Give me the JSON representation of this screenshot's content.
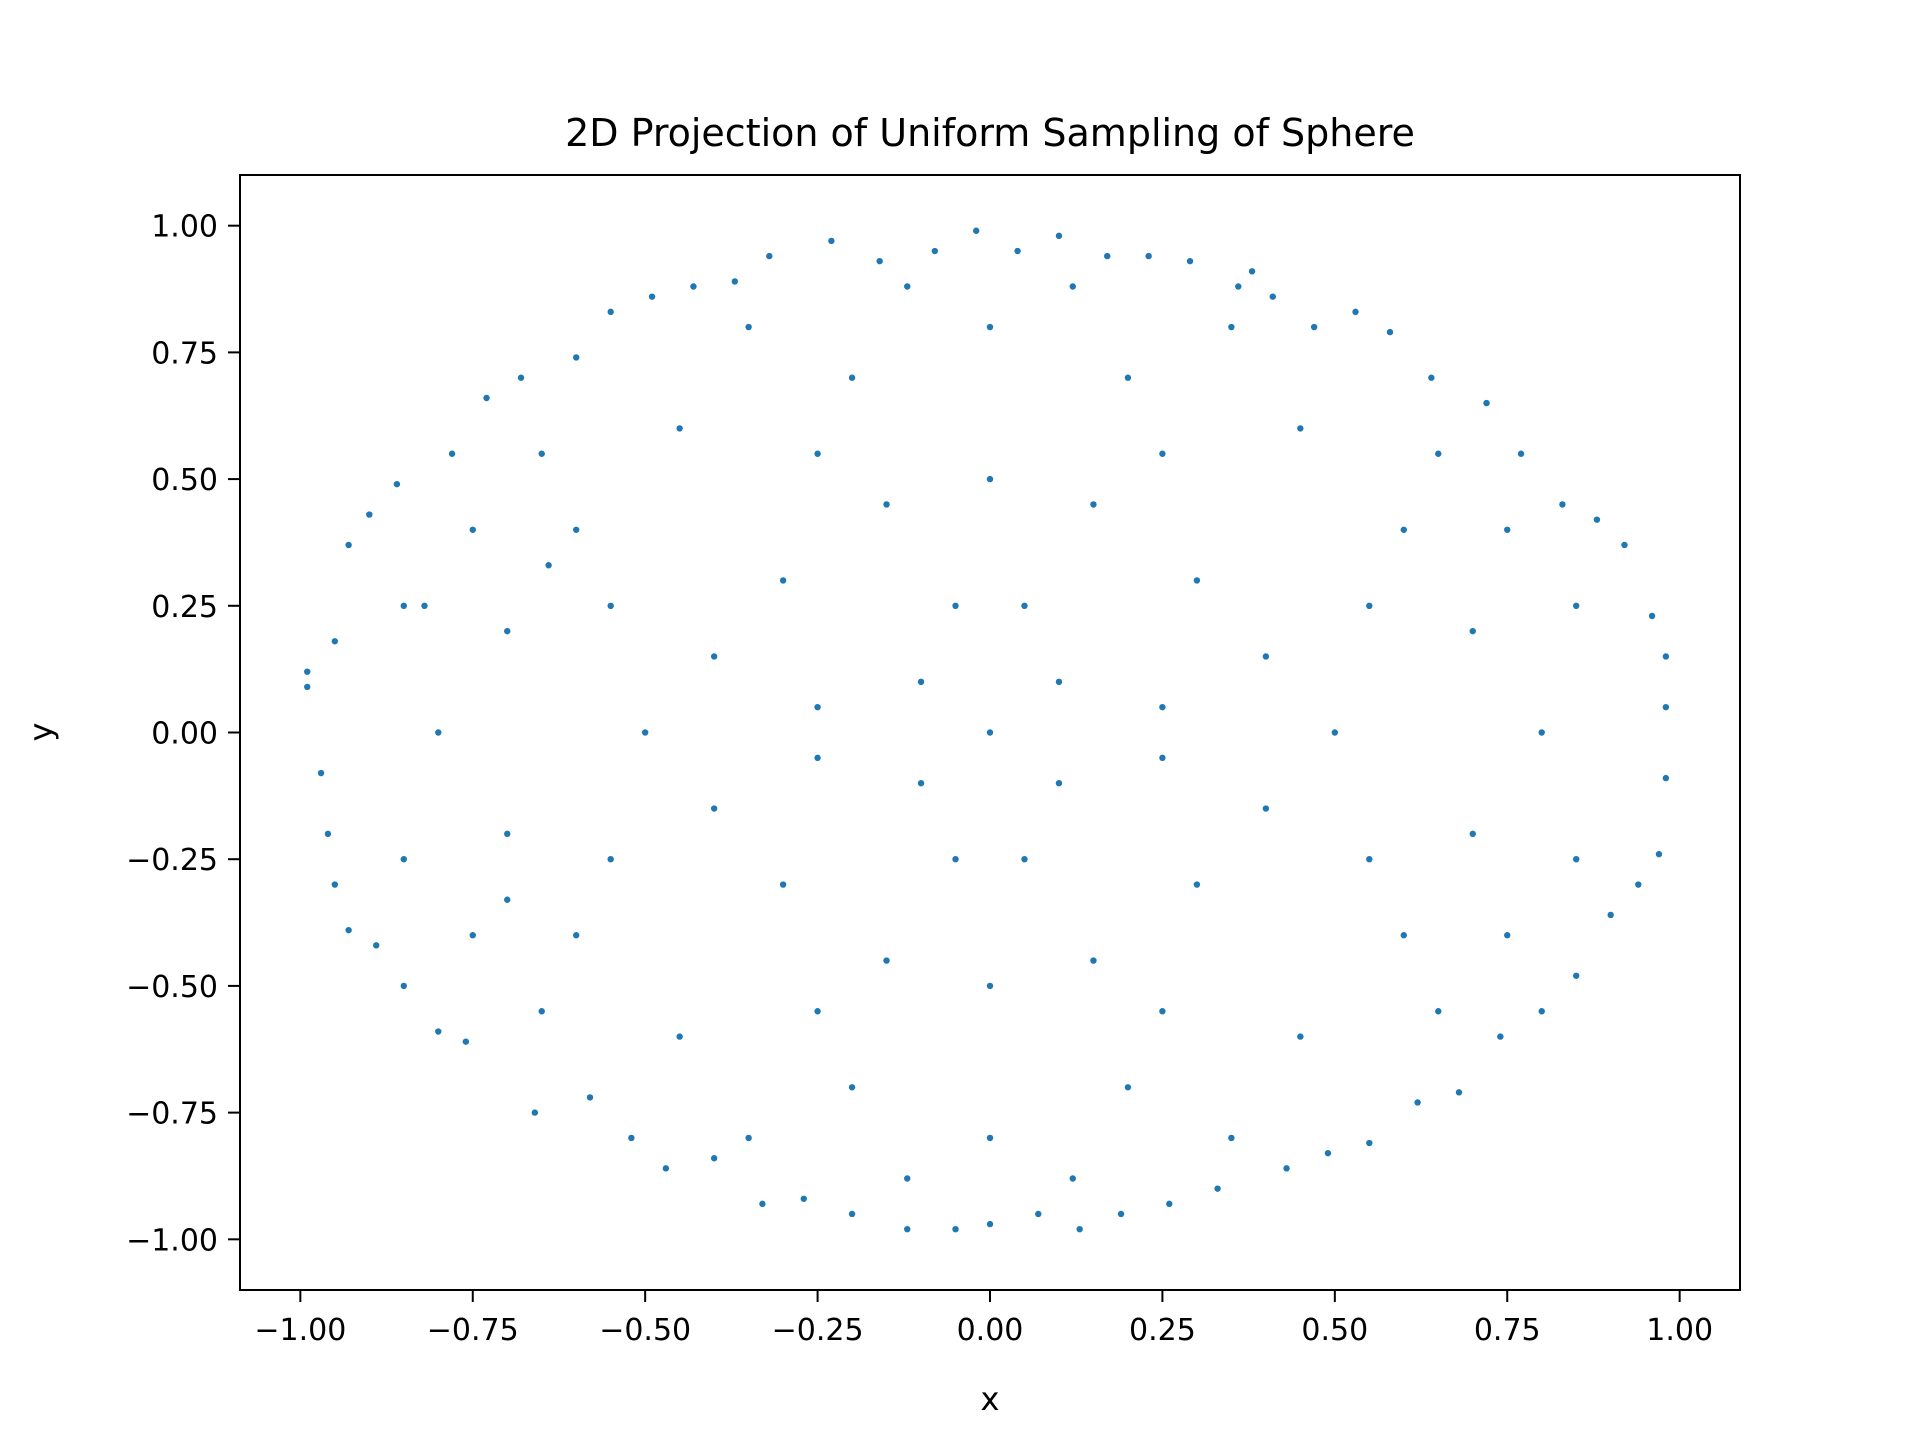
{
  "chart_data": {
    "type": "scatter",
    "title": "2D Projection of Uniform Sampling of Sphere",
    "xlabel": "x",
    "ylabel": "y",
    "xlim": [
      -1.0875,
      1.0875
    ],
    "ylim": [
      -1.1,
      1.1
    ],
    "xticks": [
      -1.0,
      -0.75,
      -0.5,
      -0.25,
      0.0,
      0.25,
      0.5,
      0.75,
      1.0
    ],
    "xtick_labels": [
      "−1.00",
      "−0.75",
      "−0.50",
      "−0.25",
      "0.00",
      "0.25",
      "0.50",
      "0.75",
      "1.00"
    ],
    "yticks": [
      -1.0,
      -0.75,
      -0.5,
      -0.25,
      0.0,
      0.25,
      0.5,
      0.75,
      1.0
    ],
    "ytick_labels": [
      "−1.00",
      "−0.75",
      "−0.50",
      "−0.25",
      "0.00",
      "0.25",
      "0.50",
      "0.75",
      "1.00"
    ],
    "grid": false,
    "marker_color": "#1f77b4",
    "series": [
      {
        "points": [
          [
            -0.99,
            0.12
          ],
          [
            -0.99,
            0.09
          ],
          [
            -0.97,
            -0.08
          ],
          [
            -0.96,
            -0.2
          ],
          [
            -0.95,
            -0.3
          ],
          [
            -0.95,
            0.18
          ],
          [
            -0.93,
            -0.39
          ],
          [
            -0.93,
            0.37
          ],
          [
            -0.9,
            0.43
          ],
          [
            -0.89,
            -0.42
          ],
          [
            -0.86,
            0.49
          ],
          [
            -0.85,
            -0.5
          ],
          [
            -0.82,
            0.25
          ],
          [
            -0.8,
            -0.59
          ],
          [
            -0.78,
            0.55
          ],
          [
            -0.76,
            -0.61
          ],
          [
            -0.73,
            0.66
          ],
          [
            -0.7,
            -0.33
          ],
          [
            -0.68,
            0.7
          ],
          [
            -0.66,
            -0.75
          ],
          [
            -0.64,
            0.33
          ],
          [
            -0.6,
            0.74
          ],
          [
            -0.58,
            -0.72
          ],
          [
            -0.55,
            0.83
          ],
          [
            -0.52,
            -0.8
          ],
          [
            -0.49,
            0.86
          ],
          [
            -0.47,
            -0.86
          ],
          [
            -0.43,
            0.88
          ],
          [
            -0.4,
            -0.84
          ],
          [
            -0.37,
            0.89
          ],
          [
            -0.33,
            -0.93
          ],
          [
            -0.32,
            0.94
          ],
          [
            -0.27,
            -0.92
          ],
          [
            -0.23,
            0.97
          ],
          [
            -0.2,
            -0.95
          ],
          [
            -0.16,
            0.93
          ],
          [
            -0.12,
            -0.98
          ],
          [
            -0.08,
            0.95
          ],
          [
            -0.05,
            -0.98
          ],
          [
            -0.02,
            0.99
          ],
          [
            0.0,
            -0.97
          ],
          [
            0.04,
            0.95
          ],
          [
            0.07,
            -0.95
          ],
          [
            0.1,
            0.98
          ],
          [
            0.13,
            -0.98
          ],
          [
            0.17,
            0.94
          ],
          [
            0.19,
            -0.95
          ],
          [
            0.23,
            0.94
          ],
          [
            0.26,
            -0.93
          ],
          [
            0.29,
            0.93
          ],
          [
            0.33,
            -0.9
          ],
          [
            0.36,
            0.88
          ],
          [
            0.38,
            0.91
          ],
          [
            0.41,
            0.86
          ],
          [
            0.43,
            -0.86
          ],
          [
            0.47,
            0.8
          ],
          [
            0.49,
            -0.83
          ],
          [
            0.53,
            0.83
          ],
          [
            0.55,
            -0.81
          ],
          [
            0.58,
            0.79
          ],
          [
            0.62,
            -0.73
          ],
          [
            0.64,
            0.7
          ],
          [
            0.68,
            -0.71
          ],
          [
            0.72,
            0.65
          ],
          [
            0.74,
            -0.6
          ],
          [
            0.77,
            0.55
          ],
          [
            0.8,
            -0.55
          ],
          [
            0.83,
            0.45
          ],
          [
            0.85,
            -0.48
          ],
          [
            0.88,
            0.42
          ],
          [
            0.9,
            -0.36
          ],
          [
            0.92,
            0.37
          ],
          [
            0.94,
            -0.3
          ],
          [
            0.96,
            0.23
          ],
          [
            0.97,
            -0.24
          ],
          [
            0.98,
            0.15
          ],
          [
            0.98,
            0.05
          ],
          [
            0.98,
            -0.09
          ],
          [
            0.0,
            0.0
          ],
          [
            0.1,
            0.1
          ],
          [
            -0.1,
            0.1
          ],
          [
            0.1,
            -0.1
          ],
          [
            -0.1,
            -0.1
          ],
          [
            0.3,
            0.3
          ],
          [
            -0.3,
            0.3
          ],
          [
            0.3,
            -0.3
          ],
          [
            -0.3,
            -0.3
          ],
          [
            0.5,
            0.0
          ],
          [
            -0.5,
            0.0
          ],
          [
            0.0,
            0.5
          ],
          [
            0.0,
            -0.5
          ],
          [
            0.6,
            0.4
          ],
          [
            -0.6,
            0.4
          ],
          [
            0.6,
            -0.4
          ],
          [
            -0.6,
            -0.4
          ],
          [
            0.2,
            0.7
          ],
          [
            -0.2,
            0.7
          ],
          [
            0.2,
            -0.7
          ],
          [
            -0.2,
            -0.7
          ],
          [
            0.7,
            0.2
          ],
          [
            -0.7,
            0.2
          ],
          [
            0.7,
            -0.2
          ],
          [
            -0.7,
            -0.2
          ],
          [
            0.45,
            0.6
          ],
          [
            -0.45,
            0.6
          ],
          [
            0.45,
            -0.6
          ],
          [
            -0.45,
            -0.6
          ],
          [
            0.8,
            0.0
          ],
          [
            -0.8,
            0.0
          ],
          [
            0.0,
            0.8
          ],
          [
            0.0,
            -0.8
          ],
          [
            0.15,
            0.45
          ],
          [
            -0.15,
            0.45
          ],
          [
            0.15,
            -0.45
          ],
          [
            -0.15,
            -0.45
          ],
          [
            0.4,
            0.15
          ],
          [
            -0.4,
            0.15
          ],
          [
            0.4,
            -0.15
          ],
          [
            -0.4,
            -0.15
          ],
          [
            0.25,
            0.55
          ],
          [
            -0.25,
            0.55
          ],
          [
            0.25,
            -0.55
          ],
          [
            -0.25,
            -0.55
          ],
          [
            0.55,
            0.25
          ],
          [
            -0.55,
            0.25
          ],
          [
            0.55,
            -0.25
          ],
          [
            -0.55,
            -0.25
          ],
          [
            0.65,
            0.55
          ],
          [
            -0.65,
            0.55
          ],
          [
            0.65,
            -0.55
          ],
          [
            -0.65,
            -0.55
          ],
          [
            0.35,
            0.8
          ],
          [
            -0.35,
            0.8
          ],
          [
            0.35,
            -0.8
          ],
          [
            -0.35,
            -0.8
          ],
          [
            0.85,
            0.25
          ],
          [
            -0.85,
            0.25
          ],
          [
            0.85,
            -0.25
          ],
          [
            -0.85,
            -0.25
          ],
          [
            0.05,
            0.25
          ],
          [
            -0.05,
            0.25
          ],
          [
            0.05,
            -0.25
          ],
          [
            -0.05,
            -0.25
          ],
          [
            0.25,
            0.05
          ],
          [
            -0.25,
            0.05
          ],
          [
            0.25,
            -0.05
          ],
          [
            -0.25,
            -0.05
          ],
          [
            0.12,
            0.88
          ],
          [
            -0.12,
            0.88
          ],
          [
            0.12,
            -0.88
          ],
          [
            -0.12,
            -0.88
          ],
          [
            0.75,
            0.4
          ],
          [
            -0.75,
            0.4
          ],
          [
            0.75,
            -0.4
          ],
          [
            -0.75,
            -0.4
          ]
        ]
      }
    ]
  }
}
